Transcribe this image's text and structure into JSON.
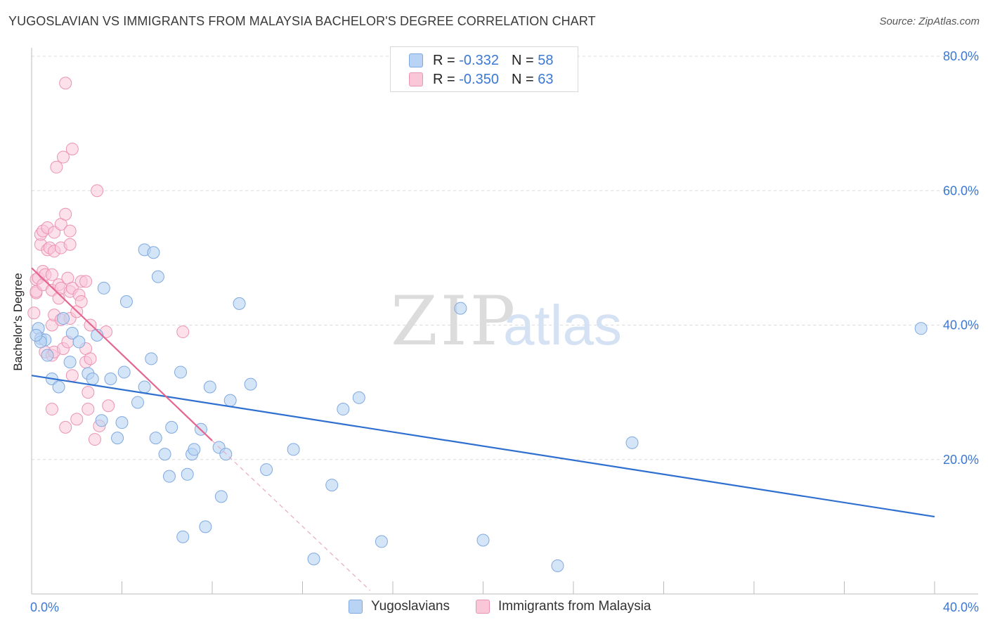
{
  "title": "YUGOSLAVIAN VS IMMIGRANTS FROM MALAYSIA BACHELOR'S DEGREE CORRELATION CHART",
  "source": "Source: ZipAtlas.com",
  "watermark": {
    "zip": "ZIP",
    "atlas": "atlas"
  },
  "colors": {
    "blue_fill": "#b9d3f4",
    "blue_stroke": "#7fa9e0",
    "blue_line": "#2f6fcf",
    "pink_fill": "#f9c7d8",
    "pink_stroke": "#ec93b4",
    "pink_line": "#e4668f",
    "axis_label": "#3b78d4",
    "grid": "#dcdcdc"
  },
  "legend_top": [
    {
      "r_label": "R =",
      "r_value": "-0.332",
      "n_label": "N =",
      "n_value": "58"
    },
    {
      "r_label": "R =",
      "r_value": "-0.350",
      "n_label": "N =",
      "n_value": "63"
    }
  ],
  "legend_bottom": [
    {
      "label": "Yugoslavians"
    },
    {
      "label": "Immigrants from Malaysia"
    }
  ],
  "chart_data": {
    "type": "scatter",
    "title": "YUGOSLAVIAN VS IMMIGRANTS FROM MALAYSIA BACHELOR'S DEGREE CORRELATION CHART",
    "xlabel": "",
    "ylabel": "Bachelor's Degree",
    "xlim": [
      0,
      40
    ],
    "ylim": [
      0,
      80
    ],
    "x_tick_labels": [
      "0.0%",
      "40.0%"
    ],
    "y_tick_labels": [
      "20.0%",
      "40.0%",
      "60.0%",
      "80.0%"
    ],
    "y_ticks": [
      20,
      40,
      60,
      80
    ],
    "grid": true,
    "legend_position": "top-center",
    "series": [
      {
        "name": "Yugoslavians",
        "r": -0.332,
        "n": 58,
        "trend": {
          "x": [
            0,
            40
          ],
          "y": [
            32.5,
            11.5
          ],
          "style": "solid"
        },
        "points": [
          [
            0.3,
            39.5
          ],
          [
            0.4,
            38.0
          ],
          [
            0.6,
            37.8
          ],
          [
            0.4,
            37.5
          ],
          [
            0.7,
            35.5
          ],
          [
            0.9,
            32.0
          ],
          [
            1.2,
            30.8
          ],
          [
            1.4,
            41.0
          ],
          [
            1.7,
            34.5
          ],
          [
            1.8,
            38.8
          ],
          [
            2.1,
            37.5
          ],
          [
            2.5,
            32.8
          ],
          [
            2.7,
            32.0
          ],
          [
            2.9,
            38.5
          ],
          [
            3.1,
            25.8
          ],
          [
            3.2,
            45.5
          ],
          [
            3.5,
            32.0
          ],
          [
            3.8,
            23.2
          ],
          [
            4.0,
            25.5
          ],
          [
            4.1,
            33.0
          ],
          [
            4.2,
            43.5
          ],
          [
            4.7,
            28.5
          ],
          [
            5.0,
            30.8
          ],
          [
            5.0,
            51.2
          ],
          [
            5.4,
            50.8
          ],
          [
            5.3,
            35.0
          ],
          [
            5.5,
            23.2
          ],
          [
            5.6,
            47.2
          ],
          [
            5.9,
            20.8
          ],
          [
            6.1,
            17.5
          ],
          [
            6.2,
            24.8
          ],
          [
            6.6,
            33.0
          ],
          [
            6.7,
            8.5
          ],
          [
            6.9,
            17.8
          ],
          [
            7.1,
            20.8
          ],
          [
            7.2,
            21.5
          ],
          [
            7.5,
            24.5
          ],
          [
            7.7,
            10.0
          ],
          [
            7.9,
            30.8
          ],
          [
            8.3,
            21.8
          ],
          [
            8.4,
            14.5
          ],
          [
            8.6,
            20.8
          ],
          [
            8.8,
            28.8
          ],
          [
            9.2,
            43.2
          ],
          [
            9.7,
            31.2
          ],
          [
            10.4,
            18.5
          ],
          [
            11.6,
            21.5
          ],
          [
            12.5,
            5.2
          ],
          [
            13.3,
            16.2
          ],
          [
            13.8,
            27.5
          ],
          [
            14.5,
            29.2
          ],
          [
            15.5,
            7.8
          ],
          [
            19.0,
            42.5
          ],
          [
            20.0,
            8.0
          ],
          [
            23.3,
            4.2
          ],
          [
            26.6,
            22.5
          ],
          [
            39.4,
            39.5
          ],
          [
            0.2,
            38.5
          ]
        ]
      },
      {
        "name": "Immigrants from Malaysia",
        "r": -0.35,
        "n": 63,
        "trend": {
          "x": [
            0,
            8.0
          ],
          "y": [
            48.5,
            22.8
          ],
          "style": "solid",
          "extension": {
            "x": [
              8.0,
              15.0
            ],
            "y": [
              22.8,
              0.5
            ],
            "style": "dashed"
          }
        },
        "points": [
          [
            0.1,
            41.8
          ],
          [
            0.2,
            44.8
          ],
          [
            0.2,
            46.8
          ],
          [
            0.2,
            45.0
          ],
          [
            0.3,
            47.0
          ],
          [
            0.4,
            52.0
          ],
          [
            0.4,
            53.5
          ],
          [
            0.5,
            54.0
          ],
          [
            0.5,
            48.0
          ],
          [
            0.5,
            46.0
          ],
          [
            0.6,
            47.5
          ],
          [
            0.6,
            36.0
          ],
          [
            0.7,
            51.2
          ],
          [
            0.7,
            54.5
          ],
          [
            0.8,
            51.5
          ],
          [
            0.9,
            45.2
          ],
          [
            0.9,
            47.5
          ],
          [
            0.9,
            40.0
          ],
          [
            0.9,
            35.5
          ],
          [
            0.9,
            27.5
          ],
          [
            1.0,
            53.8
          ],
          [
            1.0,
            51.0
          ],
          [
            1.0,
            41.5
          ],
          [
            1.0,
            36.0
          ],
          [
            1.1,
            63.5
          ],
          [
            1.2,
            46.0
          ],
          [
            1.2,
            44.0
          ],
          [
            1.3,
            45.5
          ],
          [
            1.3,
            40.8
          ],
          [
            1.3,
            55.0
          ],
          [
            1.3,
            51.5
          ],
          [
            1.4,
            36.5
          ],
          [
            1.4,
            65.0
          ],
          [
            1.5,
            56.5
          ],
          [
            1.5,
            24.8
          ],
          [
            1.6,
            37.5
          ],
          [
            1.6,
            47.0
          ],
          [
            1.5,
            76.0
          ],
          [
            1.7,
            54.0
          ],
          [
            1.7,
            41.0
          ],
          [
            1.8,
            66.2
          ],
          [
            1.7,
            52.0
          ],
          [
            1.7,
            45.0
          ],
          [
            1.8,
            45.5
          ],
          [
            1.8,
            32.5
          ],
          [
            2.0,
            42.0
          ],
          [
            2.0,
            26.0
          ],
          [
            2.1,
            44.5
          ],
          [
            2.2,
            46.5
          ],
          [
            2.2,
            43.5
          ],
          [
            2.4,
            46.5
          ],
          [
            2.4,
            36.5
          ],
          [
            2.4,
            34.5
          ],
          [
            2.5,
            30.0
          ],
          [
            2.5,
            27.5
          ],
          [
            2.6,
            35.0
          ],
          [
            2.6,
            40.0
          ],
          [
            2.8,
            23.0
          ],
          [
            2.9,
            60.0
          ],
          [
            3.0,
            25.0
          ],
          [
            3.3,
            39.0
          ],
          [
            3.4,
            28.0
          ],
          [
            6.7,
            39.0
          ]
        ]
      }
    ]
  }
}
